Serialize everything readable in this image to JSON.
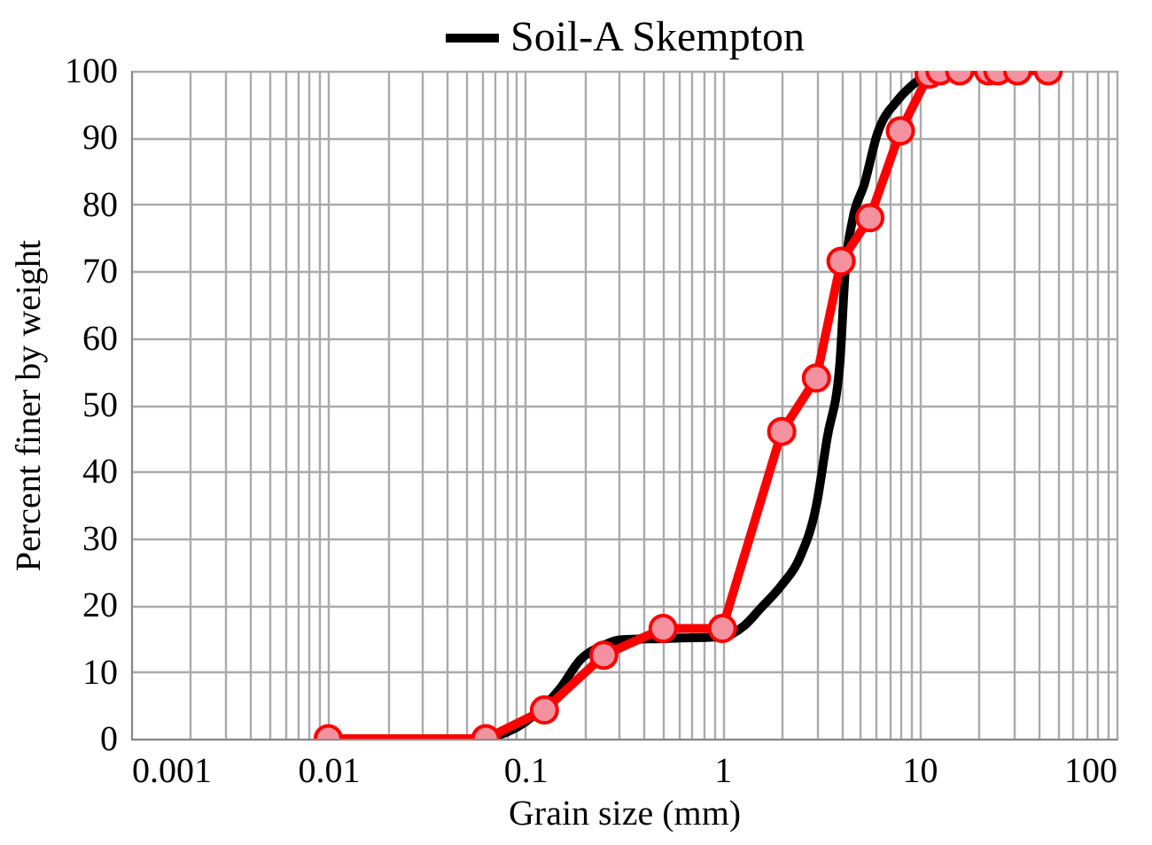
{
  "chart_data": {
    "type": "line",
    "xlabel": "Grain size (mm)",
    "ylabel": "Percent finer by weight",
    "log": "x",
    "grid": true,
    "legend": "top",
    "xlim": [
      0.001,
      100
    ],
    "xticks": [
      0.001,
      0.01,
      0.1,
      1,
      10,
      100
    ],
    "ylim": [
      0,
      100
    ],
    "yticks": [
      0,
      10,
      20,
      30,
      40,
      50,
      60,
      70,
      80,
      90,
      100
    ],
    "series": [
      {
        "name": "Soil-A Skempton",
        "color": "#000000",
        "marker": "none",
        "x": [
          0.065,
          0.1,
          0.15,
          0.19,
          0.25,
          0.3,
          0.5,
          1,
          1.3,
          1.55,
          2,
          2.46,
          3,
          3.4,
          3.94,
          4.2,
          4.6,
          5.25,
          6.1,
          7.8,
          10
        ],
        "values": [
          0,
          2.5,
          7.5,
          11.8,
          14,
          14.8,
          15,
          15.3,
          17,
          19.4,
          23,
          27,
          35,
          45,
          56,
          70,
          78,
          83,
          90.5,
          95.7,
          98.7
        ]
      },
      {
        "color": "#ff0000",
        "marker": "circle",
        "x": [
          0.01,
          0.063,
          0.125,
          0.25,
          0.5,
          1,
          2,
          3,
          4,
          5.6,
          8,
          11.2,
          12.7,
          16,
          22.4,
          25,
          31.5,
          45
        ],
        "values": [
          0,
          0,
          4.3,
          12.5,
          16.5,
          16.5,
          46,
          54,
          71.5,
          78,
          91,
          99.5,
          100,
          100,
          100,
          100,
          100,
          100
        ]
      }
    ]
  }
}
